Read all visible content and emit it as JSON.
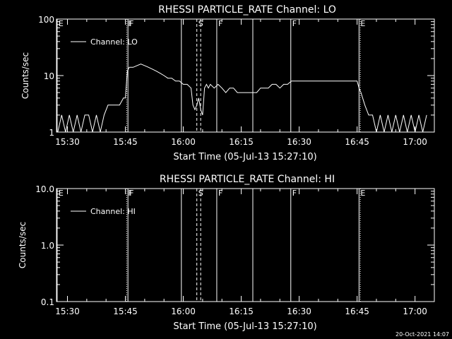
{
  "background": "#000000",
  "foreground": "#ffffff",
  "timestamp": "20-Oct-2021 14:07",
  "chart_data": [
    {
      "type": "line",
      "title": "RHESSI PARTICLE_RATE Channel: LO",
      "xlabel": "Start Time (05-Jul-13 15:27:10)",
      "ylabel": "Counts/sec",
      "yscale": "log",
      "ylim": [
        1,
        100
      ],
      "yticks": [
        "1",
        "10",
        "100"
      ],
      "xlim": [
        "15:27:10",
        "17:05:00"
      ],
      "xticks": [
        "15:30",
        "15:45",
        "16:00",
        "16:15",
        "16:30",
        "16:45",
        "17:00"
      ],
      "legend": "Channel: LO",
      "event_markers": [
        {
          "label": "E",
          "time": "15:27:20",
          "style": "solid"
        },
        {
          "label": "F",
          "time": "15:45:20",
          "style": "dotted"
        },
        {
          "label": "F",
          "time": "15:45:40",
          "style": "solid"
        },
        {
          "label": "",
          "time": "15:59:30",
          "style": "solid"
        },
        {
          "label": "S",
          "time": "16:03:30",
          "style": "dashed"
        },
        {
          "label": "",
          "time": "16:04:30",
          "style": "dashed"
        },
        {
          "label": "F",
          "time": "16:08:40",
          "style": "solid"
        },
        {
          "label": "",
          "time": "16:18:00",
          "style": "solid"
        },
        {
          "label": "F",
          "time": "16:27:50",
          "style": "solid"
        },
        {
          "label": "E",
          "time": "16:45:30",
          "style": "solid"
        },
        {
          "label": "",
          "time": "16:45:50",
          "style": "dotted"
        },
        {
          "label": "",
          "time": "17:05:30",
          "style": "dotted"
        }
      ],
      "series": [
        {
          "name": "Channel: LO",
          "x": [
            "15:27:30",
            "15:28:30",
            "15:29:30",
            "15:30:30",
            "15:31:30",
            "15:32:30",
            "15:33:30",
            "15:34:30",
            "15:35:30",
            "15:36:30",
            "15:37:30",
            "15:38:30",
            "15:39:30",
            "15:40:30",
            "15:41:30",
            "15:42:30",
            "15:43:30",
            "15:44:30",
            "15:45:00",
            "15:45:30",
            "15:46:00",
            "15:47:00",
            "15:48:00",
            "15:49:00",
            "15:50:00",
            "15:51:00",
            "15:52:00",
            "15:53:00",
            "15:54:00",
            "15:55:00",
            "15:56:00",
            "15:57:00",
            "15:58:00",
            "15:59:00",
            "16:00:00",
            "16:01:00",
            "16:02:00",
            "16:02:30",
            "16:03:00",
            "16:03:30",
            "16:04:00",
            "16:04:30",
            "16:05:00",
            "16:05:30",
            "16:06:00",
            "16:06:30",
            "16:07:00",
            "16:08:00",
            "16:09:00",
            "16:10:00",
            "16:11:00",
            "16:12:00",
            "16:13:00",
            "16:14:00",
            "16:15:00",
            "16:16:00",
            "16:17:00",
            "16:18:00",
            "16:19:00",
            "16:20:00",
            "16:21:00",
            "16:22:00",
            "16:23:00",
            "16:24:00",
            "16:25:00",
            "16:26:00",
            "16:27:00",
            "16:28:00",
            "16:29:00",
            "16:30:00",
            "16:31:00",
            "16:32:00",
            "16:33:00",
            "16:34:00",
            "16:35:00",
            "16:36:00",
            "16:37:00",
            "16:38:00",
            "16:39:00",
            "16:40:00",
            "16:41:00",
            "16:42:00",
            "16:43:00",
            "16:44:00",
            "16:45:00",
            "16:45:30",
            "16:46:00",
            "16:47:00",
            "16:48:00",
            "16:49:00",
            "16:50:00",
            "16:51:00",
            "16:52:00",
            "16:53:00",
            "16:54:00",
            "16:55:00",
            "16:56:00",
            "16:57:00",
            "16:58:00",
            "16:59:00",
            "17:00:00",
            "17:01:00",
            "17:02:00",
            "17:03:00"
          ],
          "y": [
            1,
            2,
            1,
            2,
            1,
            2,
            1,
            2,
            2,
            1,
            2,
            1,
            2,
            3,
            3,
            3,
            3,
            4,
            4,
            12,
            14,
            14,
            15,
            16,
            15,
            14,
            13,
            12,
            11,
            10,
            9,
            9,
            8,
            8,
            7,
            7,
            6,
            3,
            2.5,
            3,
            4,
            2.5,
            2,
            6,
            7,
            6,
            7,
            6,
            7,
            6,
            5,
            6,
            6,
            5,
            5,
            5,
            5,
            5,
            5,
            6,
            6,
            6,
            7,
            7,
            6,
            7,
            7,
            8,
            8,
            8,
            8,
            8,
            8,
            8,
            8,
            8,
            8,
            8,
            8,
            8,
            8,
            8,
            8,
            8,
            8,
            6,
            5,
            3,
            2,
            2,
            1,
            2,
            1,
            2,
            1,
            2,
            1,
            2,
            1,
            2,
            1,
            2,
            1,
            2
          ]
        }
      ]
    },
    {
      "type": "line",
      "title": "RHESSI PARTICLE_RATE Channel: HI",
      "xlabel": "Start Time (05-Jul-13 15:27:10)",
      "ylabel": "Counts/sec",
      "yscale": "log",
      "ylim": [
        0.1,
        10
      ],
      "yticks": [
        "0.1",
        "1.0",
        "10.0"
      ],
      "xlim": [
        "15:27:10",
        "17:05:00"
      ],
      "xticks": [
        "15:30",
        "15:45",
        "16:00",
        "16:15",
        "16:30",
        "16:45",
        "17:00"
      ],
      "legend": "Channel: HI",
      "event_markers": [
        {
          "label": "E",
          "time": "15:27:20",
          "style": "solid"
        },
        {
          "label": "F",
          "time": "15:45:20",
          "style": "dotted"
        },
        {
          "label": "F",
          "time": "15:45:40",
          "style": "solid"
        },
        {
          "label": "",
          "time": "15:59:30",
          "style": "solid"
        },
        {
          "label": "S",
          "time": "16:03:30",
          "style": "dashed"
        },
        {
          "label": "",
          "time": "16:04:30",
          "style": "dashed"
        },
        {
          "label": "F",
          "time": "16:08:40",
          "style": "solid"
        },
        {
          "label": "",
          "time": "16:18:00",
          "style": "solid"
        },
        {
          "label": "F",
          "time": "16:27:50",
          "style": "solid"
        },
        {
          "label": "E",
          "time": "16:45:30",
          "style": "solid"
        },
        {
          "label": "",
          "time": "16:45:50",
          "style": "dotted"
        },
        {
          "label": "",
          "time": "17:05:30",
          "style": "dotted"
        }
      ],
      "series": [
        {
          "name": "Channel: HI",
          "x": [],
          "y": []
        }
      ]
    }
  ]
}
